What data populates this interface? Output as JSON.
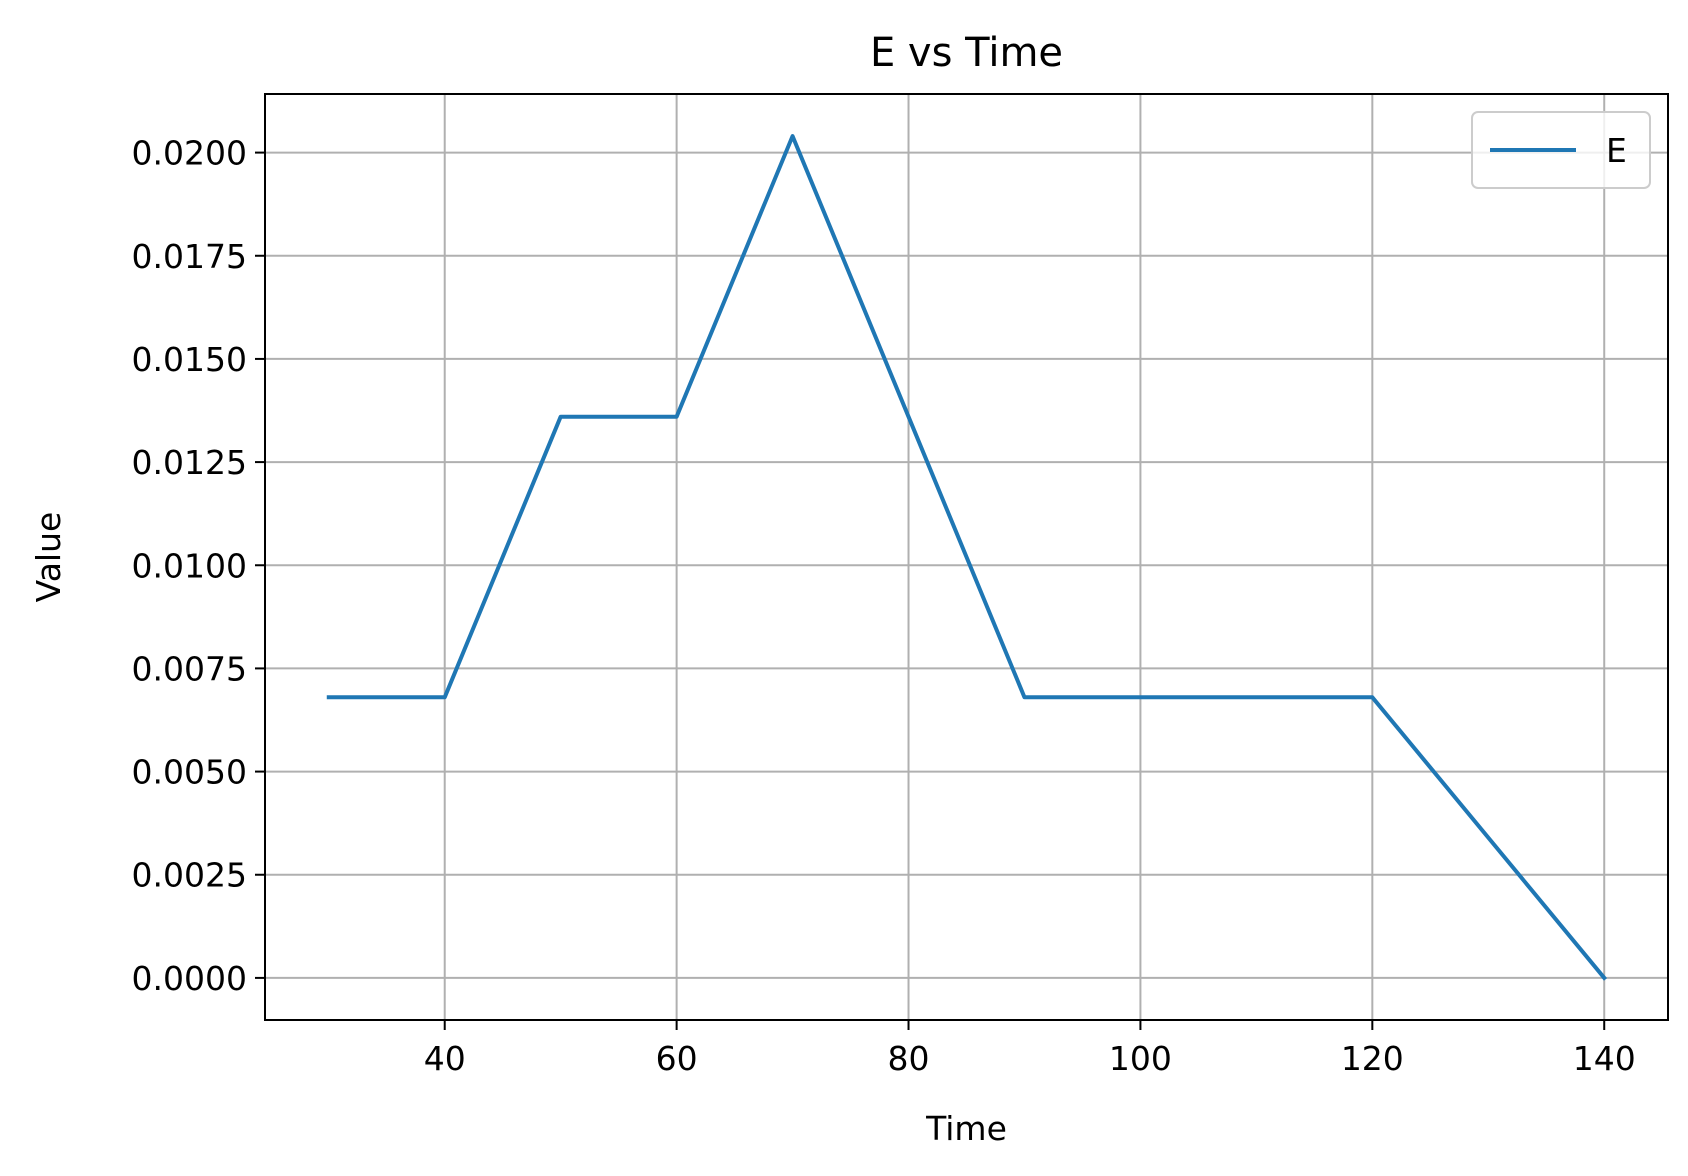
{
  "chart_data": {
    "type": "line",
    "title": "E vs Time",
    "xlabel": "Time",
    "ylabel": "Value",
    "xlim": [
      24.5,
      145.5
    ],
    "ylim": [
      -0.00102,
      0.02142
    ],
    "x_ticks": [
      40,
      60,
      80,
      100,
      120,
      140
    ],
    "x_tick_labels": [
      "40",
      "60",
      "80",
      "100",
      "120",
      "140"
    ],
    "y_ticks": [
      0.0,
      0.0025,
      0.005,
      0.0075,
      0.01,
      0.0125,
      0.015,
      0.0175,
      0.02
    ],
    "y_tick_labels": [
      "0.0000",
      "0.0025",
      "0.0050",
      "0.0075",
      "0.0100",
      "0.0125",
      "0.0150",
      "0.0175",
      "0.0200"
    ],
    "grid": true,
    "legend_position": "top-right",
    "series": [
      {
        "name": "E",
        "color": "#1f77b4",
        "x": [
          30,
          40,
          50,
          60,
          70,
          80,
          90,
          100,
          110,
          120,
          130,
          140
        ],
        "y": [
          0.0068,
          0.0068,
          0.0136,
          0.0136,
          0.0204,
          0.0136,
          0.0068,
          0.0068,
          0.0068,
          0.0068,
          0.0034,
          0.0
        ]
      }
    ]
  }
}
